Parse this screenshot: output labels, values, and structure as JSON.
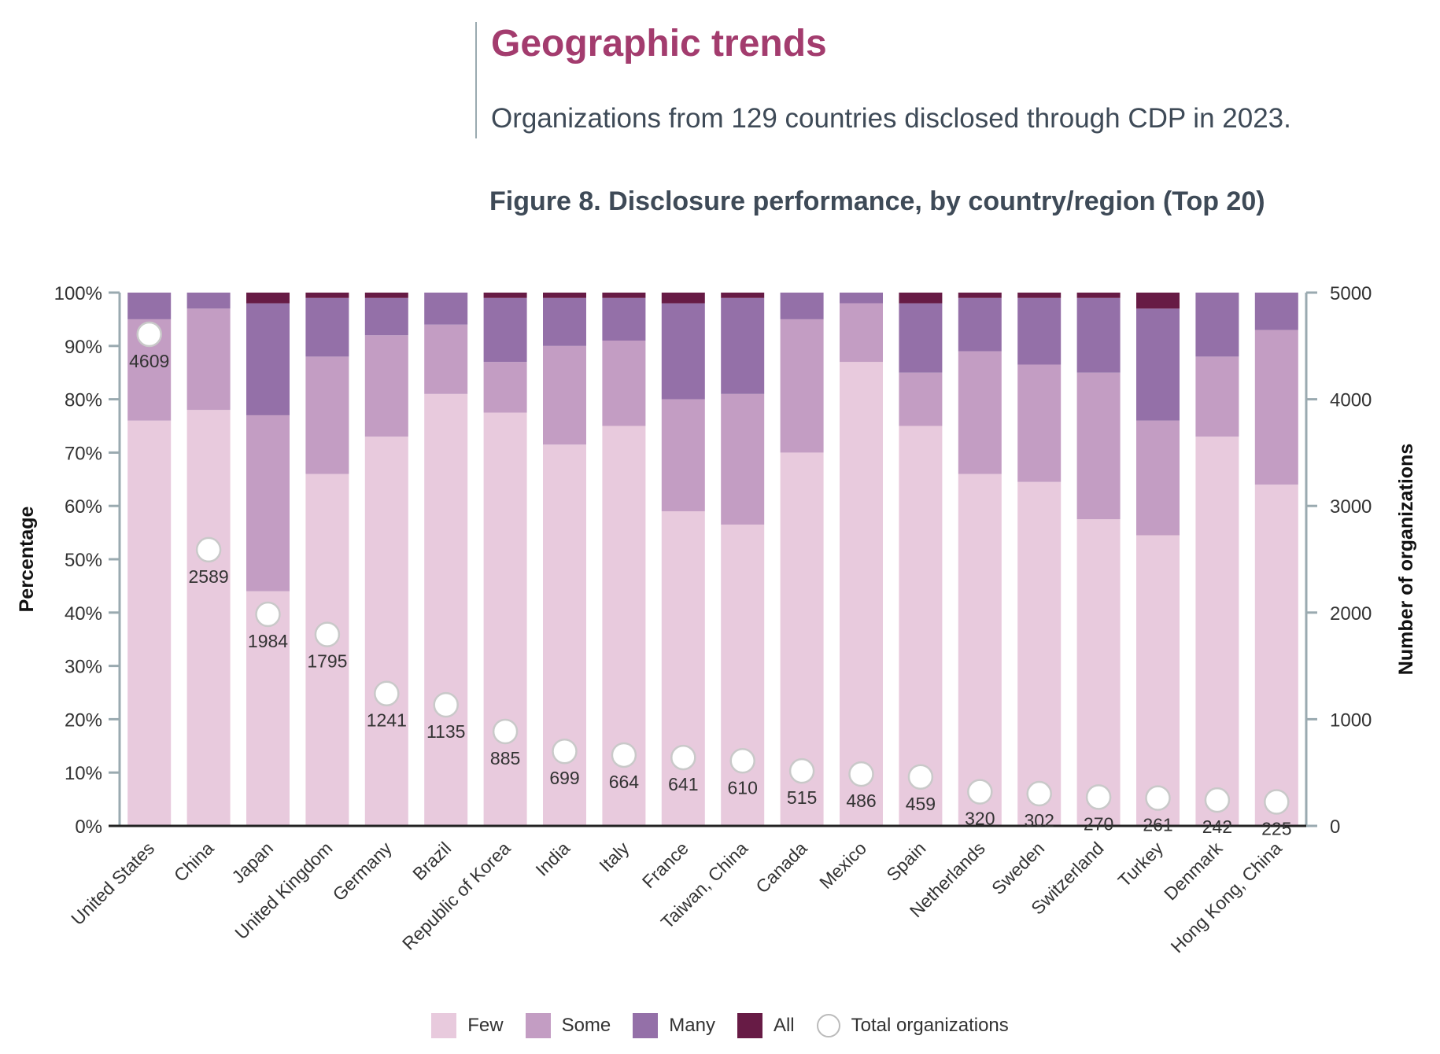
{
  "header": {
    "title": "Geographic trends",
    "subtitle": "Organizations from 129 countries disclosed through CDP in 2023."
  },
  "chart_data": {
    "type": "bar",
    "stacked": true,
    "title": "Figure 8. Disclosure performance, by country/region (Top 20)",
    "ylabel": "Percentage",
    "y2label": "Number of organizations",
    "ylim": [
      0,
      100
    ],
    "y2lim": [
      0,
      5000
    ],
    "yticks": [
      "0%",
      "10%",
      "20%",
      "30%",
      "40%",
      "50%",
      "60%",
      "70%",
      "80%",
      "90%",
      "100%"
    ],
    "y2ticks": [
      "0",
      "1000",
      "2000",
      "3000",
      "4000",
      "5000"
    ],
    "categories": [
      "United States",
      "China",
      "Japan",
      "United Kingdom",
      "Germany",
      "Brazil",
      "Republic of Korea",
      "India",
      "Italy",
      "France",
      "Taiwan, China",
      "Canada",
      "Mexico",
      "Spain",
      "Netherlands",
      "Sweden",
      "Switzerland",
      "Turkey",
      "Denmark",
      "Hong Kong, China"
    ],
    "series": [
      {
        "name": "Few",
        "color": "#e8cadd",
        "values": [
          76,
          78,
          44,
          66,
          73,
          81,
          77.5,
          71.5,
          75,
          59,
          56.5,
          70,
          87,
          75,
          66,
          64.5,
          57.5,
          54.5,
          73,
          64
        ]
      },
      {
        "name": "Some",
        "color": "#c39dc3",
        "values": [
          19,
          19,
          33,
          22,
          19,
          13,
          9.5,
          18.5,
          16,
          21,
          24.5,
          25,
          11,
          10,
          23,
          22,
          27.5,
          21.5,
          15,
          29
        ]
      },
      {
        "name": "Many",
        "color": "#9470a8",
        "values": [
          5,
          3,
          21,
          11,
          7,
          6,
          12,
          9,
          8,
          18,
          18,
          5,
          2,
          13,
          10,
          12.5,
          14,
          21,
          12,
          7
        ]
      },
      {
        "name": "All",
        "color": "#671b45",
        "values": [
          0,
          0,
          2,
          1,
          1,
          0,
          1,
          1,
          1,
          2,
          1,
          0,
          0,
          2,
          1,
          1,
          1,
          3,
          0,
          0
        ]
      }
    ],
    "totals": {
      "name": "Total organizations",
      "axis": "right",
      "values": [
        4609,
        2589,
        1984,
        1795,
        1241,
        1135,
        885,
        699,
        664,
        641,
        610,
        515,
        486,
        459,
        320,
        302,
        270,
        261,
        242,
        225
      ]
    },
    "legend": "bottom-center"
  }
}
